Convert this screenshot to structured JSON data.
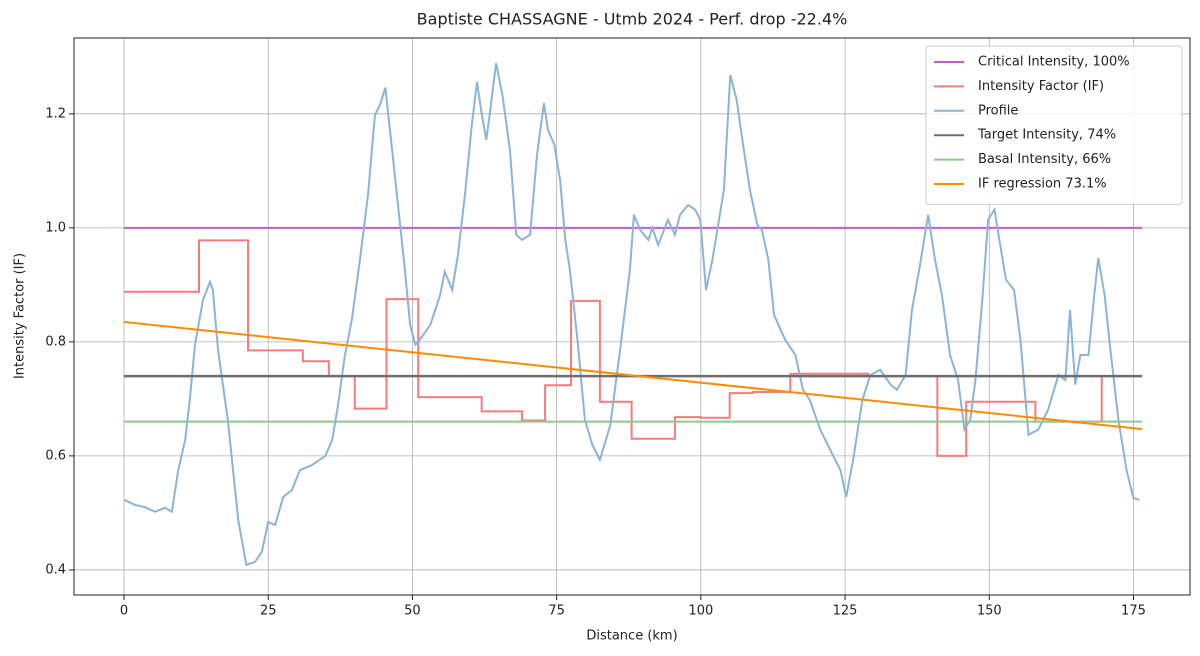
{
  "chart_data": {
    "type": "line",
    "title": "Baptiste CHASSAGNE - Utmb 2024 - Perf. drop -22.4%",
    "x_label": "Distance (km)",
    "y_label": "Intensity Factor (IF)",
    "xlim": [
      -8.67,
      184.8
    ],
    "ylim": [
      0.356,
      1.333
    ],
    "xticks": [
      0,
      25,
      50,
      75,
      100,
      125,
      150,
      175
    ],
    "yticks": [
      0.4,
      0.6,
      0.8,
      {
        "value": 1,
        "label": "1.0"
      },
      1.2
    ],
    "grid": true,
    "legend": "upper right",
    "series": [
      {
        "name": "Critical Intensity, 100%",
        "color": "#c060c0",
        "x": [
          0,
          176.5
        ],
        "values": [
          1,
          1
        ]
      },
      {
        "name": "Intensity Factor (IF)",
        "color": "#f47c7c",
        "drawstyle": "steps-post",
        "x": [
          0,
          13,
          21.5,
          31,
          35.5,
          40,
          45.5,
          51,
          62,
          69,
          73,
          77.5,
          82.5,
          88,
          95.5,
          100,
          105,
          109,
          115.5,
          129,
          141,
          146,
          158,
          169.5,
          176.5
        ],
        "values": [
          0.888,
          0.978,
          0.785,
          0.766,
          0.74,
          0.683,
          0.875,
          0.703,
          0.678,
          0.662,
          0.724,
          0.872,
          0.695,
          0.63,
          0.668,
          0.667,
          0.71,
          0.712,
          0.744,
          0.74,
          0.6,
          0.695,
          0.66,
          0.74,
          0.74
        ]
      },
      {
        "name": "Profile",
        "color": "#8ab4d8",
        "x": [
          0,
          1.9,
          3.6,
          5.4,
          7.1,
          8.3,
          9.4,
          10.6,
          11.4,
          12.3,
          13.7,
          14.9,
          15.4,
          16.3,
          18.0,
          19.8,
          21.2,
          22.7,
          23.9,
          25,
          26.2,
          27.6,
          29.1,
          30.5,
          32.6,
          34.9,
          36.1,
          37.1,
          38.3,
          39.5,
          40.9,
          42.3,
          43.5,
          44.4,
          45.3,
          46.1,
          47.5,
          48.7,
          49.6,
          50.5,
          51.3,
          53.1,
          54.8,
          55.6,
          56.9,
          57.9,
          59.1,
          60.3,
          61.2,
          61.9,
          62.8,
          63.5,
          64.5,
          65.6,
          66.9,
          68.0,
          69.0,
          70.4,
          71.6,
          72.8,
          73.5,
          74.6,
          75.6,
          76.5,
          77.3,
          78.7,
          79.9,
          81.2,
          82.5,
          84.3,
          86.0,
          87.7,
          88.4,
          89.5,
          90.9,
          91.6,
          92.6,
          94.3,
          95.5,
          96.4,
          97.8,
          99.0,
          99.9,
          100.9,
          102.0,
          103.0,
          104.0,
          105.1,
          106.2,
          107.2,
          108.5,
          109.8,
          110.6,
          111.7,
          112.7,
          114.6,
          116.4,
          117.7,
          118.9,
          120.7,
          122.4,
          124.2,
          125.2,
          126.4,
          128.0,
          129.4,
          131.1,
          132.9,
          134.0,
          135.5,
          136.6,
          138.0,
          139.4,
          140.6,
          141.8,
          143.2,
          144.6,
          145.7,
          146.7,
          147.6,
          148.8,
          149.8,
          150.9,
          151.9,
          152.9,
          154.3,
          155.4,
          156.8,
          158.5,
          160.2,
          162.0,
          163.2,
          164.0,
          164.9,
          165.8,
          167.2,
          168.2,
          168.9,
          170.0,
          171.0,
          172.4,
          173.8,
          175.0,
          176.0
        ],
        "values": [
          0.523,
          0.514,
          0.51,
          0.502,
          0.509,
          0.502,
          0.575,
          0.628,
          0.698,
          0.795,
          0.874,
          0.905,
          0.891,
          0.786,
          0.663,
          0.488,
          0.409,
          0.414,
          0.432,
          0.484,
          0.479,
          0.528,
          0.54,
          0.575,
          0.584,
          0.6,
          0.628,
          0.689,
          0.777,
          0.839,
          0.944,
          1.058,
          1.198,
          1.216,
          1.246,
          1.172,
          1.04,
          0.926,
          0.83,
          0.795,
          0.804,
          0.83,
          0.882,
          0.923,
          0.891,
          0.953,
          1.058,
          1.181,
          1.256,
          1.207,
          1.154,
          1.207,
          1.289,
          1.233,
          1.137,
          0.988,
          0.979,
          0.988,
          1.128,
          1.219,
          1.172,
          1.146,
          1.084,
          0.979,
          0.926,
          0.795,
          0.663,
          0.619,
          0.593,
          0.654,
          0.786,
          0.926,
          1.023,
          0.996,
          0.979,
          1.0,
          0.97,
          1.014,
          0.988,
          1.023,
          1.04,
          1.032,
          1.014,
          0.891,
          0.944,
          1.005,
          1.067,
          1.268,
          1.225,
          1.154,
          1.067,
          1.005,
          0.996,
          0.944,
          0.847,
          0.804,
          0.777,
          0.716,
          0.698,
          0.646,
          0.611,
          0.575,
          0.528,
          0.593,
          0.698,
          0.742,
          0.751,
          0.725,
          0.716,
          0.742,
          0.856,
          0.935,
          1.023,
          0.944,
          0.882,
          0.777,
          0.733,
          0.646,
          0.663,
          0.733,
          0.874,
          1.014,
          1.032,
          0.97,
          0.909,
          0.891,
          0.804,
          0.637,
          0.646,
          0.681,
          0.742,
          0.733,
          0.856,
          0.725,
          0.777,
          0.777,
          0.882,
          0.947,
          0.882,
          0.786,
          0.663,
          0.575,
          0.526,
          0.523
        ]
      },
      {
        "name": "Target Intensity, 74%",
        "color": "#6e6e6e",
        "x": [
          0,
          176.5
        ],
        "values": [
          0.74,
          0.74
        ]
      },
      {
        "name": "Basal Intensity, 66%",
        "color": "#8cc98c",
        "x": [
          0,
          176.5
        ],
        "values": [
          0.66,
          0.66
        ]
      },
      {
        "name": "IF regression 73.1%",
        "color": "#ff8c00",
        "x": [
          0,
          176.5
        ],
        "values": [
          0.835,
          0.647
        ]
      }
    ]
  }
}
